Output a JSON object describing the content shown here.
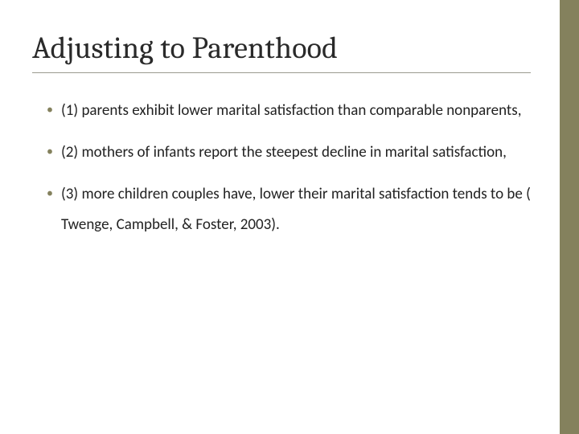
{
  "slide": {
    "title": "Adjusting to Parenthood",
    "bullets": [
      "(1) parents exhibit lower marital satisfaction than comparable nonparents,",
      "(2) mothers of infants report the steepest decline in marital satisfaction,",
      "(3) more children couples have, lower their marital satisfaction tends to be ( Twenge, Campbell, & Foster, 2003)."
    ],
    "style": {
      "accent_color": "#84815d",
      "background_color": "#ffffff",
      "title_color": "#2a2a2a",
      "body_color": "#222222",
      "underline_color": "#9a9a8f",
      "title_fontsize": 38,
      "body_fontsize": 19,
      "accent_bar_width": 24
    }
  }
}
